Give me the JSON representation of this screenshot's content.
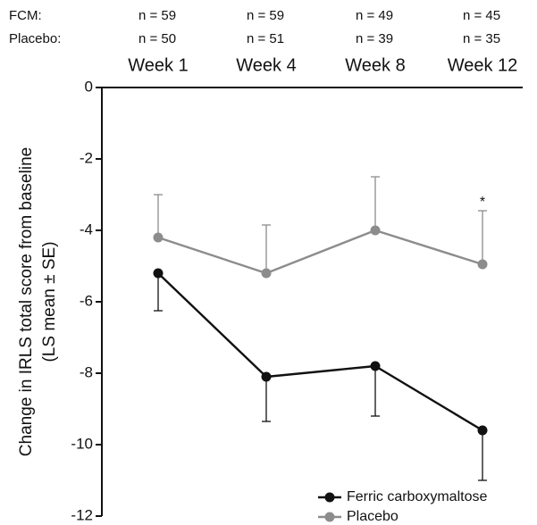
{
  "chart_data": {
    "type": "line",
    "categories": [
      "Week 1",
      "Week 4",
      "Week 8",
      "Week 12"
    ],
    "ylabel": "Change in IRLS total score from baseline\n(LS mean ± SE)",
    "ylim": [
      -12,
      0
    ],
    "yticks": [
      0,
      -2,
      -4,
      -6,
      -8,
      -10,
      -12
    ],
    "grid": false,
    "legend_position": "bottom-right",
    "n_rows": [
      {
        "label": "FCM:",
        "values": [
          "n = 59",
          "n = 59",
          "n = 49",
          "n = 45"
        ]
      },
      {
        "label": "Placebo:",
        "values": [
          "n = 50",
          "n = 51",
          "n = 39",
          "n = 35"
        ]
      }
    ],
    "series": [
      {
        "name": "Ferric carboxymaltose",
        "color": "#111111",
        "values": [
          -5.2,
          -8.1,
          -7.8,
          -9.6
        ],
        "error": [
          1.05,
          1.25,
          1.4,
          1.4
        ],
        "error_direction": "down"
      },
      {
        "name": "Placebo",
        "color": "#8c8c8c",
        "values": [
          -4.2,
          -5.2,
          -4.0,
          -4.95
        ],
        "error": [
          1.2,
          1.35,
          1.5,
          1.5
        ],
        "error_direction": "up"
      }
    ],
    "annotations": [
      {
        "text": "*",
        "category": "Week 12"
      }
    ]
  }
}
